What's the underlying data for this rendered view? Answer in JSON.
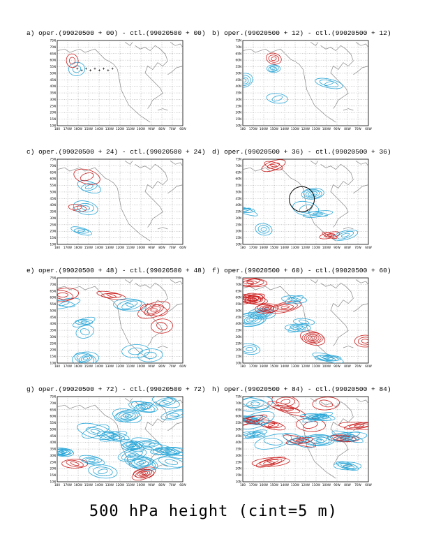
{
  "figure": {
    "caption": "500 hPa height (cint=5 m)",
    "colors": {
      "positive": "#cc1f1f",
      "negative": "#2aa7d8",
      "coast": "#888888",
      "grid": "#555555",
      "circle": "#000000"
    },
    "lat_labels": [
      "75N",
      "70N",
      "65N",
      "60N",
      "55N",
      "50N",
      "45N",
      "40N",
      "35N",
      "30N",
      "25N",
      "20N",
      "15N",
      "10N"
    ],
    "lon_labels": [
      "180",
      "170W",
      "160W",
      "150W",
      "140W",
      "130W",
      "120W",
      "110W",
      "100W",
      "90W",
      "80W",
      "70W",
      "60W"
    ],
    "panels": [
      {
        "id": "a",
        "title": "a) oper.(99020500 + 00) - ctl.(99020500 + 00)",
        "activity": 0
      },
      {
        "id": "b",
        "title": "b) oper.(99020500 + 12) - ctl.(99020500 + 12)",
        "activity": 1
      },
      {
        "id": "c",
        "title": "c) oper.(99020500 + 24) - ctl.(99020500 + 24)",
        "activity": 1
      },
      {
        "id": "d",
        "title": "d) oper.(99020500 + 36) - ctl.(99020500 + 36)",
        "activity": 2,
        "circle": true
      },
      {
        "id": "e",
        "title": "e) oper.(99020500 + 48) - ctl.(99020500 + 48)",
        "activity": 3
      },
      {
        "id": "f",
        "title": "f) oper.(99020500 + 60) - ctl.(99020500 + 60)",
        "activity": 4
      },
      {
        "id": "g",
        "title": "g) oper.(99020500 + 72) - ctl.(99020500 + 72)",
        "activity": 5
      },
      {
        "id": "h",
        "title": "h) oper.(99020500 + 84) - ctl.(99020500 + 84)",
        "activity": 6
      }
    ]
  }
}
